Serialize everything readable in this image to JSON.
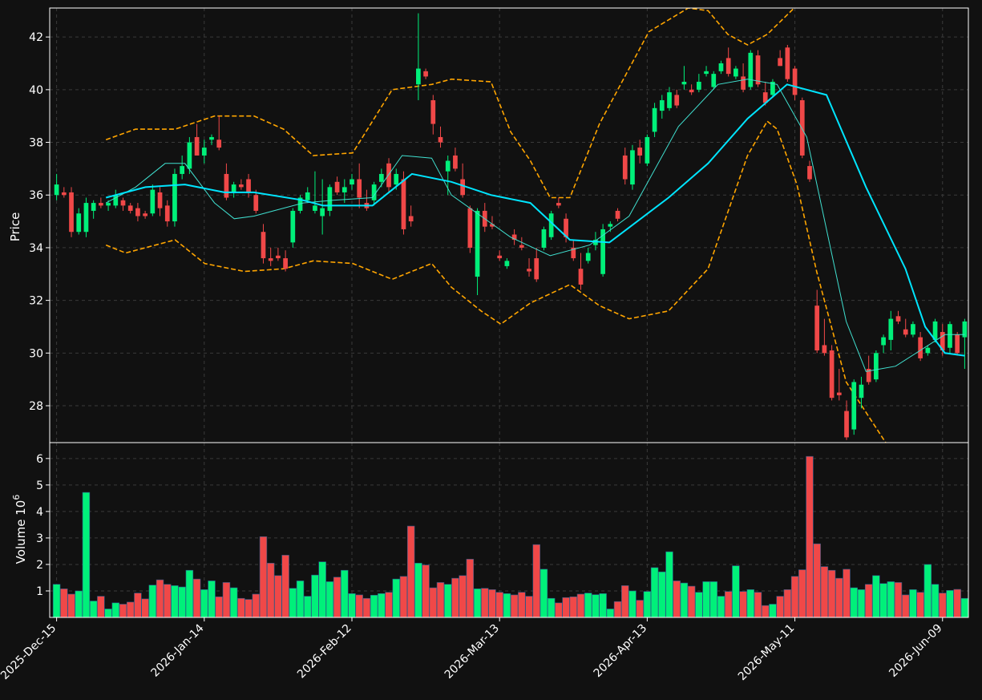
{
  "colors": {
    "background": "#111111",
    "up": "#00f07a",
    "down": "#f04848",
    "bollinger": "#ffa500",
    "ma_fast": "#40e0d0",
    "ma_slow": "#00e5ff",
    "grid": "#3a3a3a",
    "frame": "#ffffff"
  },
  "chart_data": [
    {
      "type": "candlestick",
      "panel": "price",
      "ylabel": "Price",
      "ylim": [
        26.6,
        43.1
      ],
      "yticks": [
        28,
        30,
        32,
        34,
        36,
        38,
        40,
        42
      ],
      "xlabels": [
        "2025-Dec-15",
        "2026-Jan-14",
        "2026-Feb-12",
        "2026-Mar-13",
        "2026-Apr-13",
        "2026-May-11",
        "2026-Jun-09"
      ],
      "xlabel_index": [
        0,
        20,
        40,
        60,
        80,
        100,
        120
      ],
      "n_bars": 124,
      "grid": true,
      "ohlc_approx": [
        [
          36.0,
          36.8,
          35.8,
          36.4
        ],
        [
          36.1,
          36.3,
          35.9,
          36.0
        ],
        [
          36.1,
          36.3,
          34.4,
          34.6
        ],
        [
          34.6,
          35.5,
          34.5,
          35.3
        ],
        [
          34.6,
          35.9,
          34.4,
          35.7
        ],
        [
          35.4,
          35.8,
          35.1,
          35.7
        ],
        [
          35.7,
          35.9,
          35.5,
          35.6
        ],
        [
          35.6,
          35.8,
          35.4,
          35.7
        ],
        [
          35.6,
          36.2,
          35.5,
          36.0
        ],
        [
          35.8,
          35.9,
          35.4,
          35.6
        ],
        [
          35.6,
          35.7,
          35.3,
          35.4
        ],
        [
          35.5,
          35.7,
          35.0,
          35.2
        ],
        [
          35.3,
          35.4,
          35.1,
          35.2
        ],
        [
          35.3,
          36.4,
          35.2,
          36.2
        ],
        [
          36.1,
          36.3,
          35.2,
          35.5
        ],
        [
          35.6,
          35.8,
          34.8,
          35.0
        ],
        [
          35.0,
          37.0,
          34.8,
          36.8
        ],
        [
          36.8,
          37.5,
          36.6,
          37.1
        ],
        [
          37.0,
          38.2,
          36.8,
          38.0
        ],
        [
          38.2,
          38.7,
          37.8,
          37.5
        ],
        [
          37.5,
          38.1,
          37.2,
          37.8
        ],
        [
          38.1,
          38.3,
          37.9,
          38.2
        ],
        [
          38.1,
          39.0,
          37.7,
          37.8
        ],
        [
          36.8,
          37.2,
          35.8,
          35.9
        ],
        [
          36.1,
          36.5,
          35.9,
          36.4
        ],
        [
          36.4,
          36.6,
          36.2,
          36.3
        ],
        [
          36.6,
          36.8,
          35.9,
          36.1
        ],
        [
          36.0,
          36.2,
          35.3,
          35.4
        ],
        [
          34.6,
          34.9,
          33.4,
          33.6
        ],
        [
          33.6,
          34.0,
          33.3,
          33.5
        ],
        [
          33.7,
          34.0,
          33.5,
          33.6
        ],
        [
          33.6,
          33.9,
          33.1,
          33.2
        ],
        [
          34.2,
          35.5,
          34.0,
          35.4
        ],
        [
          35.4,
          36.0,
          35.3,
          35.9
        ],
        [
          35.8,
          36.3,
          35.7,
          36.1
        ],
        [
          35.4,
          36.9,
          35.3,
          35.6
        ],
        [
          35.2,
          36.6,
          34.5,
          35.5
        ],
        [
          35.4,
          36.4,
          35.2,
          36.3
        ],
        [
          36.5,
          36.7,
          36.0,
          36.1
        ],
        [
          36.1,
          36.6,
          35.7,
          36.3
        ],
        [
          36.4,
          36.8,
          36.2,
          36.6
        ],
        [
          36.6,
          37.2,
          35.5,
          35.9
        ],
        [
          35.7,
          36.2,
          35.4,
          35.5
        ],
        [
          35.8,
          36.5,
          35.6,
          36.4
        ],
        [
          36.5,
          37.0,
          36.3,
          36.8
        ],
        [
          37.2,
          37.4,
          36.1,
          36.3
        ],
        [
          36.4,
          37.0,
          36.2,
          36.8
        ],
        [
          36.6,
          36.9,
          34.5,
          34.7
        ],
        [
          35.2,
          35.6,
          34.8,
          35.0
        ],
        [
          40.2,
          42.9,
          39.6,
          40.8
        ],
        [
          40.7,
          40.8,
          40.4,
          40.5
        ],
        [
          39.6,
          39.8,
          38.3,
          38.7
        ],
        [
          38.2,
          38.6,
          37.8,
          38.0
        ],
        [
          36.9,
          37.5,
          36.0,
          37.3
        ],
        [
          37.5,
          37.8,
          36.9,
          37.0
        ],
        [
          36.6,
          37.2,
          35.9,
          36.0
        ],
        [
          35.5,
          35.6,
          33.8,
          34.0
        ],
        [
          32.9,
          35.5,
          32.2,
          35.4
        ],
        [
          35.4,
          35.7,
          34.6,
          34.8
        ],
        [
          34.9,
          35.2,
          34.7,
          34.8
        ],
        [
          33.7,
          33.9,
          33.5,
          33.6
        ],
        [
          33.3,
          33.6,
          33.2,
          33.5
        ],
        [
          34.5,
          34.7,
          34.1,
          34.3
        ],
        [
          34.1,
          34.4,
          33.9,
          34.0
        ],
        [
          33.2,
          33.6,
          32.9,
          33.1
        ],
        [
          33.6,
          34.0,
          32.7,
          32.8
        ],
        [
          34.0,
          34.8,
          33.9,
          34.7
        ],
        [
          34.4,
          35.4,
          34.3,
          35.3
        ],
        [
          35.7,
          35.9,
          35.5,
          35.6
        ],
        [
          35.1,
          35.3,
          34.2,
          34.4
        ],
        [
          34.0,
          34.3,
          33.5,
          33.6
        ],
        [
          33.2,
          33.8,
          32.4,
          32.6
        ],
        [
          33.5,
          34.0,
          33.4,
          33.8
        ],
        [
          34.1,
          34.6,
          33.9,
          34.3
        ],
        [
          33.0,
          34.9,
          32.9,
          34.7
        ],
        [
          34.8,
          35.0,
          34.6,
          34.9
        ],
        [
          35.4,
          35.5,
          35.0,
          35.1
        ],
        [
          37.5,
          37.8,
          36.4,
          36.6
        ],
        [
          36.4,
          37.9,
          36.2,
          37.7
        ],
        [
          37.8,
          38.1,
          37.2,
          37.5
        ],
        [
          37.2,
          38.3,
          37.1,
          38.2
        ],
        [
          38.4,
          39.5,
          38.2,
          39.3
        ],
        [
          39.2,
          39.8,
          38.9,
          39.6
        ],
        [
          39.3,
          40.1,
          39.2,
          39.9
        ],
        [
          39.8,
          40.0,
          39.3,
          39.4
        ],
        [
          40.2,
          40.9,
          40.0,
          40.3
        ],
        [
          40.0,
          40.2,
          39.8,
          39.9
        ],
        [
          40.0,
          40.6,
          39.9,
          40.3
        ],
        [
          40.6,
          40.9,
          40.5,
          40.7
        ],
        [
          40.1,
          40.7,
          40.0,
          40.6
        ],
        [
          40.7,
          41.1,
          40.6,
          41.0
        ],
        [
          41.2,
          41.6,
          40.5,
          40.6
        ],
        [
          40.5,
          40.9,
          40.4,
          40.8
        ],
        [
          40.5,
          41.0,
          39.9,
          40.0
        ],
        [
          40.1,
          41.5,
          40.0,
          41.4
        ],
        [
          41.3,
          41.5,
          40.1,
          40.2
        ],
        [
          39.9,
          40.3,
          39.4,
          39.5
        ],
        [
          39.8,
          40.4,
          39.7,
          40.3
        ],
        [
          41.2,
          41.5,
          40.9,
          40.9
        ],
        [
          41.6,
          41.7,
          40.3,
          40.4
        ],
        [
          40.8,
          40.9,
          39.6,
          39.8
        ],
        [
          39.6,
          39.7,
          37.4,
          37.5
        ],
        [
          37.1,
          37.3,
          36.5,
          36.6
        ],
        [
          31.8,
          32.4,
          30.0,
          30.1
        ],
        [
          30.3,
          31.3,
          29.9,
          30.0
        ],
        [
          30.1,
          30.3,
          28.2,
          28.3
        ],
        [
          28.5,
          29.4,
          28.2,
          28.4
        ],
        [
          27.8,
          28.2,
          26.7,
          26.8
        ],
        [
          27.1,
          29.0,
          26.9,
          28.9
        ],
        [
          28.3,
          29.1,
          27.9,
          28.8
        ],
        [
          29.4,
          29.9,
          28.8,
          28.9
        ],
        [
          29.0,
          30.1,
          28.9,
          30.0
        ],
        [
          30.3,
          30.7,
          30.0,
          30.6
        ],
        [
          30.5,
          31.6,
          30.1,
          31.3
        ],
        [
          31.4,
          31.6,
          31.1,
          31.2
        ],
        [
          30.9,
          31.3,
          30.6,
          30.7
        ],
        [
          30.7,
          31.2,
          30.6,
          31.1
        ],
        [
          30.6,
          30.8,
          29.7,
          29.8
        ],
        [
          30.0,
          30.3,
          29.9,
          30.2
        ],
        [
          30.5,
          31.3,
          30.4,
          31.2
        ],
        [
          30.8,
          31.1,
          29.9,
          30.1
        ],
        [
          30.2,
          31.2,
          30.0,
          31.1
        ],
        [
          30.7,
          30.8,
          29.9,
          30.0
        ],
        [
          30.6,
          31.3,
          29.4,
          31.2
        ]
      ],
      "bollinger_upper_approx": [
        [
          5,
          38.1
        ],
        [
          8,
          38.5
        ],
        [
          12,
          38.5
        ],
        [
          16,
          39.0
        ],
        [
          20,
          39.0
        ],
        [
          23,
          38.5
        ],
        [
          26,
          37.5
        ],
        [
          30,
          37.6
        ],
        [
          34,
          40.0
        ],
        [
          38,
          40.2
        ],
        [
          40,
          40.4
        ],
        [
          44,
          40.3
        ],
        [
          46,
          38.4
        ],
        [
          48,
          37.3
        ],
        [
          50,
          35.9
        ],
        [
          52,
          35.9
        ],
        [
          55,
          38.7
        ],
        [
          60,
          42.2
        ],
        [
          64,
          43.1
        ],
        [
          66,
          43.0
        ],
        [
          68,
          42.1
        ],
        [
          70,
          41.7
        ],
        [
          72,
          42.1
        ],
        [
          75,
          43.2
        ]
      ],
      "bollinger_lower_approx": [
        [
          5,
          34.1
        ],
        [
          7,
          33.8
        ],
        [
          12,
          34.3
        ],
        [
          15,
          33.4
        ],
        [
          19,
          33.1
        ],
        [
          23,
          33.2
        ],
        [
          26,
          33.5
        ],
        [
          30,
          33.4
        ],
        [
          34,
          32.8
        ],
        [
          38,
          33.4
        ],
        [
          40,
          32.5
        ],
        [
          43,
          31.6
        ],
        [
          45,
          31.1
        ],
        [
          48,
          31.9
        ],
        [
          52,
          32.6
        ],
        [
          55,
          31.8
        ],
        [
          58,
          31.3
        ],
        [
          62,
          31.6
        ],
        [
          66,
          33.2
        ],
        [
          70,
          37.5
        ],
        [
          72,
          38.8
        ],
        [
          73,
          38.5
        ],
        [
          75,
          36.4
        ],
        [
          77,
          33.1
        ],
        [
          80,
          28.9
        ],
        [
          84,
          26.6
        ]
      ],
      "ma_slow_approx": [
        [
          5,
          35.9
        ],
        [
          9,
          36.3
        ],
        [
          13,
          36.4
        ],
        [
          17,
          36.1
        ],
        [
          20,
          36.1
        ],
        [
          25,
          35.8
        ],
        [
          27,
          35.6
        ],
        [
          32,
          35.6
        ],
        [
          36,
          36.8
        ],
        [
          40,
          36.5
        ],
        [
          44,
          36.0
        ],
        [
          48,
          35.7
        ],
        [
          52,
          34.3
        ],
        [
          56,
          34.2
        ],
        [
          62,
          35.9
        ],
        [
          66,
          37.2
        ],
        [
          70,
          38.9
        ],
        [
          74,
          40.2
        ],
        [
          78,
          39.8
        ],
        [
          82,
          36.3
        ],
        [
          86,
          33.2
        ],
        [
          88,
          31.0
        ],
        [
          90,
          30.0
        ],
        [
          92,
          29.9
        ]
      ],
      "ma_fast_approx": [
        [
          5,
          35.7
        ],
        [
          8,
          36.3
        ],
        [
          11,
          37.2
        ],
        [
          13,
          37.2
        ],
        [
          16,
          35.7
        ],
        [
          18,
          35.1
        ],
        [
          20,
          35.2
        ],
        [
          22,
          35.4
        ],
        [
          25,
          35.7
        ],
        [
          28,
          35.8
        ],
        [
          32,
          35.9
        ],
        [
          35,
          37.5
        ],
        [
          38,
          37.4
        ],
        [
          40,
          36.0
        ],
        [
          43,
          35.2
        ],
        [
          46,
          34.4
        ],
        [
          50,
          33.7
        ],
        [
          54,
          34.1
        ],
        [
          58,
          35.2
        ],
        [
          63,
          38.6
        ],
        [
          67,
          40.2
        ],
        [
          70,
          40.4
        ],
        [
          73,
          40.2
        ],
        [
          76,
          38.2
        ],
        [
          80,
          31.2
        ],
        [
          82,
          29.3
        ],
        [
          85,
          29.5
        ],
        [
          90,
          30.7
        ],
        [
          92,
          30.7
        ]
      ]
    },
    {
      "type": "bar",
      "panel": "volume",
      "ylabel": "Volume  10",
      "ylabel_exponent": "6",
      "ylim": [
        0,
        6.6
      ],
      "yticks": [
        1,
        2,
        3,
        4,
        5,
        6
      ],
      "values_approx": [
        1.25,
        1.08,
        0.88,
        1.0,
        4.72,
        0.62,
        0.8,
        0.32,
        0.55,
        0.5,
        0.58,
        0.92,
        0.7,
        1.22,
        1.42,
        1.25,
        1.2,
        1.15,
        1.78,
        1.45,
        1.05,
        1.38,
        0.78,
        1.32,
        1.12,
        0.72,
        0.68,
        0.88,
        3.05,
        2.05,
        1.58,
        2.35,
        1.1,
        1.38,
        0.8,
        1.6,
        2.1,
        1.35,
        1.52,
        1.78,
        0.9,
        0.85,
        0.72,
        0.84,
        0.9,
        0.95,
        1.45,
        1.55,
        3.45,
        2.05,
        1.98,
        1.12,
        1.32,
        1.25,
        1.48,
        1.58,
        2.2,
        1.08,
        1.1,
        1.05,
        0.95,
        0.9,
        0.85,
        0.95,
        0.8,
        2.75,
        1.82,
        0.72,
        0.55,
        0.75,
        0.78,
        0.88,
        0.92,
        0.86,
        0.9,
        0.32,
        0.6,
        1.2,
        1.0,
        0.65,
        0.98,
        1.88,
        1.72,
        2.48,
        1.38,
        1.3,
        1.18,
        0.95,
        1.35,
        1.35,
        0.8,
        0.98,
        1.95,
        0.98,
        1.05,
        0.95,
        0.45,
        0.5,
        0.8,
        1.05,
        1.55,
        1.8,
        6.08,
        2.78,
        1.92,
        1.78,
        1.48,
        1.82,
        1.12,
        1.05,
        1.25,
        1.58,
        1.28,
        1.35,
        1.32,
        0.85,
        1.05,
        0.95,
        2.0,
        1.25,
        0.92,
        1.02,
        1.06,
        0.72
      ],
      "grid": true
    }
  ]
}
